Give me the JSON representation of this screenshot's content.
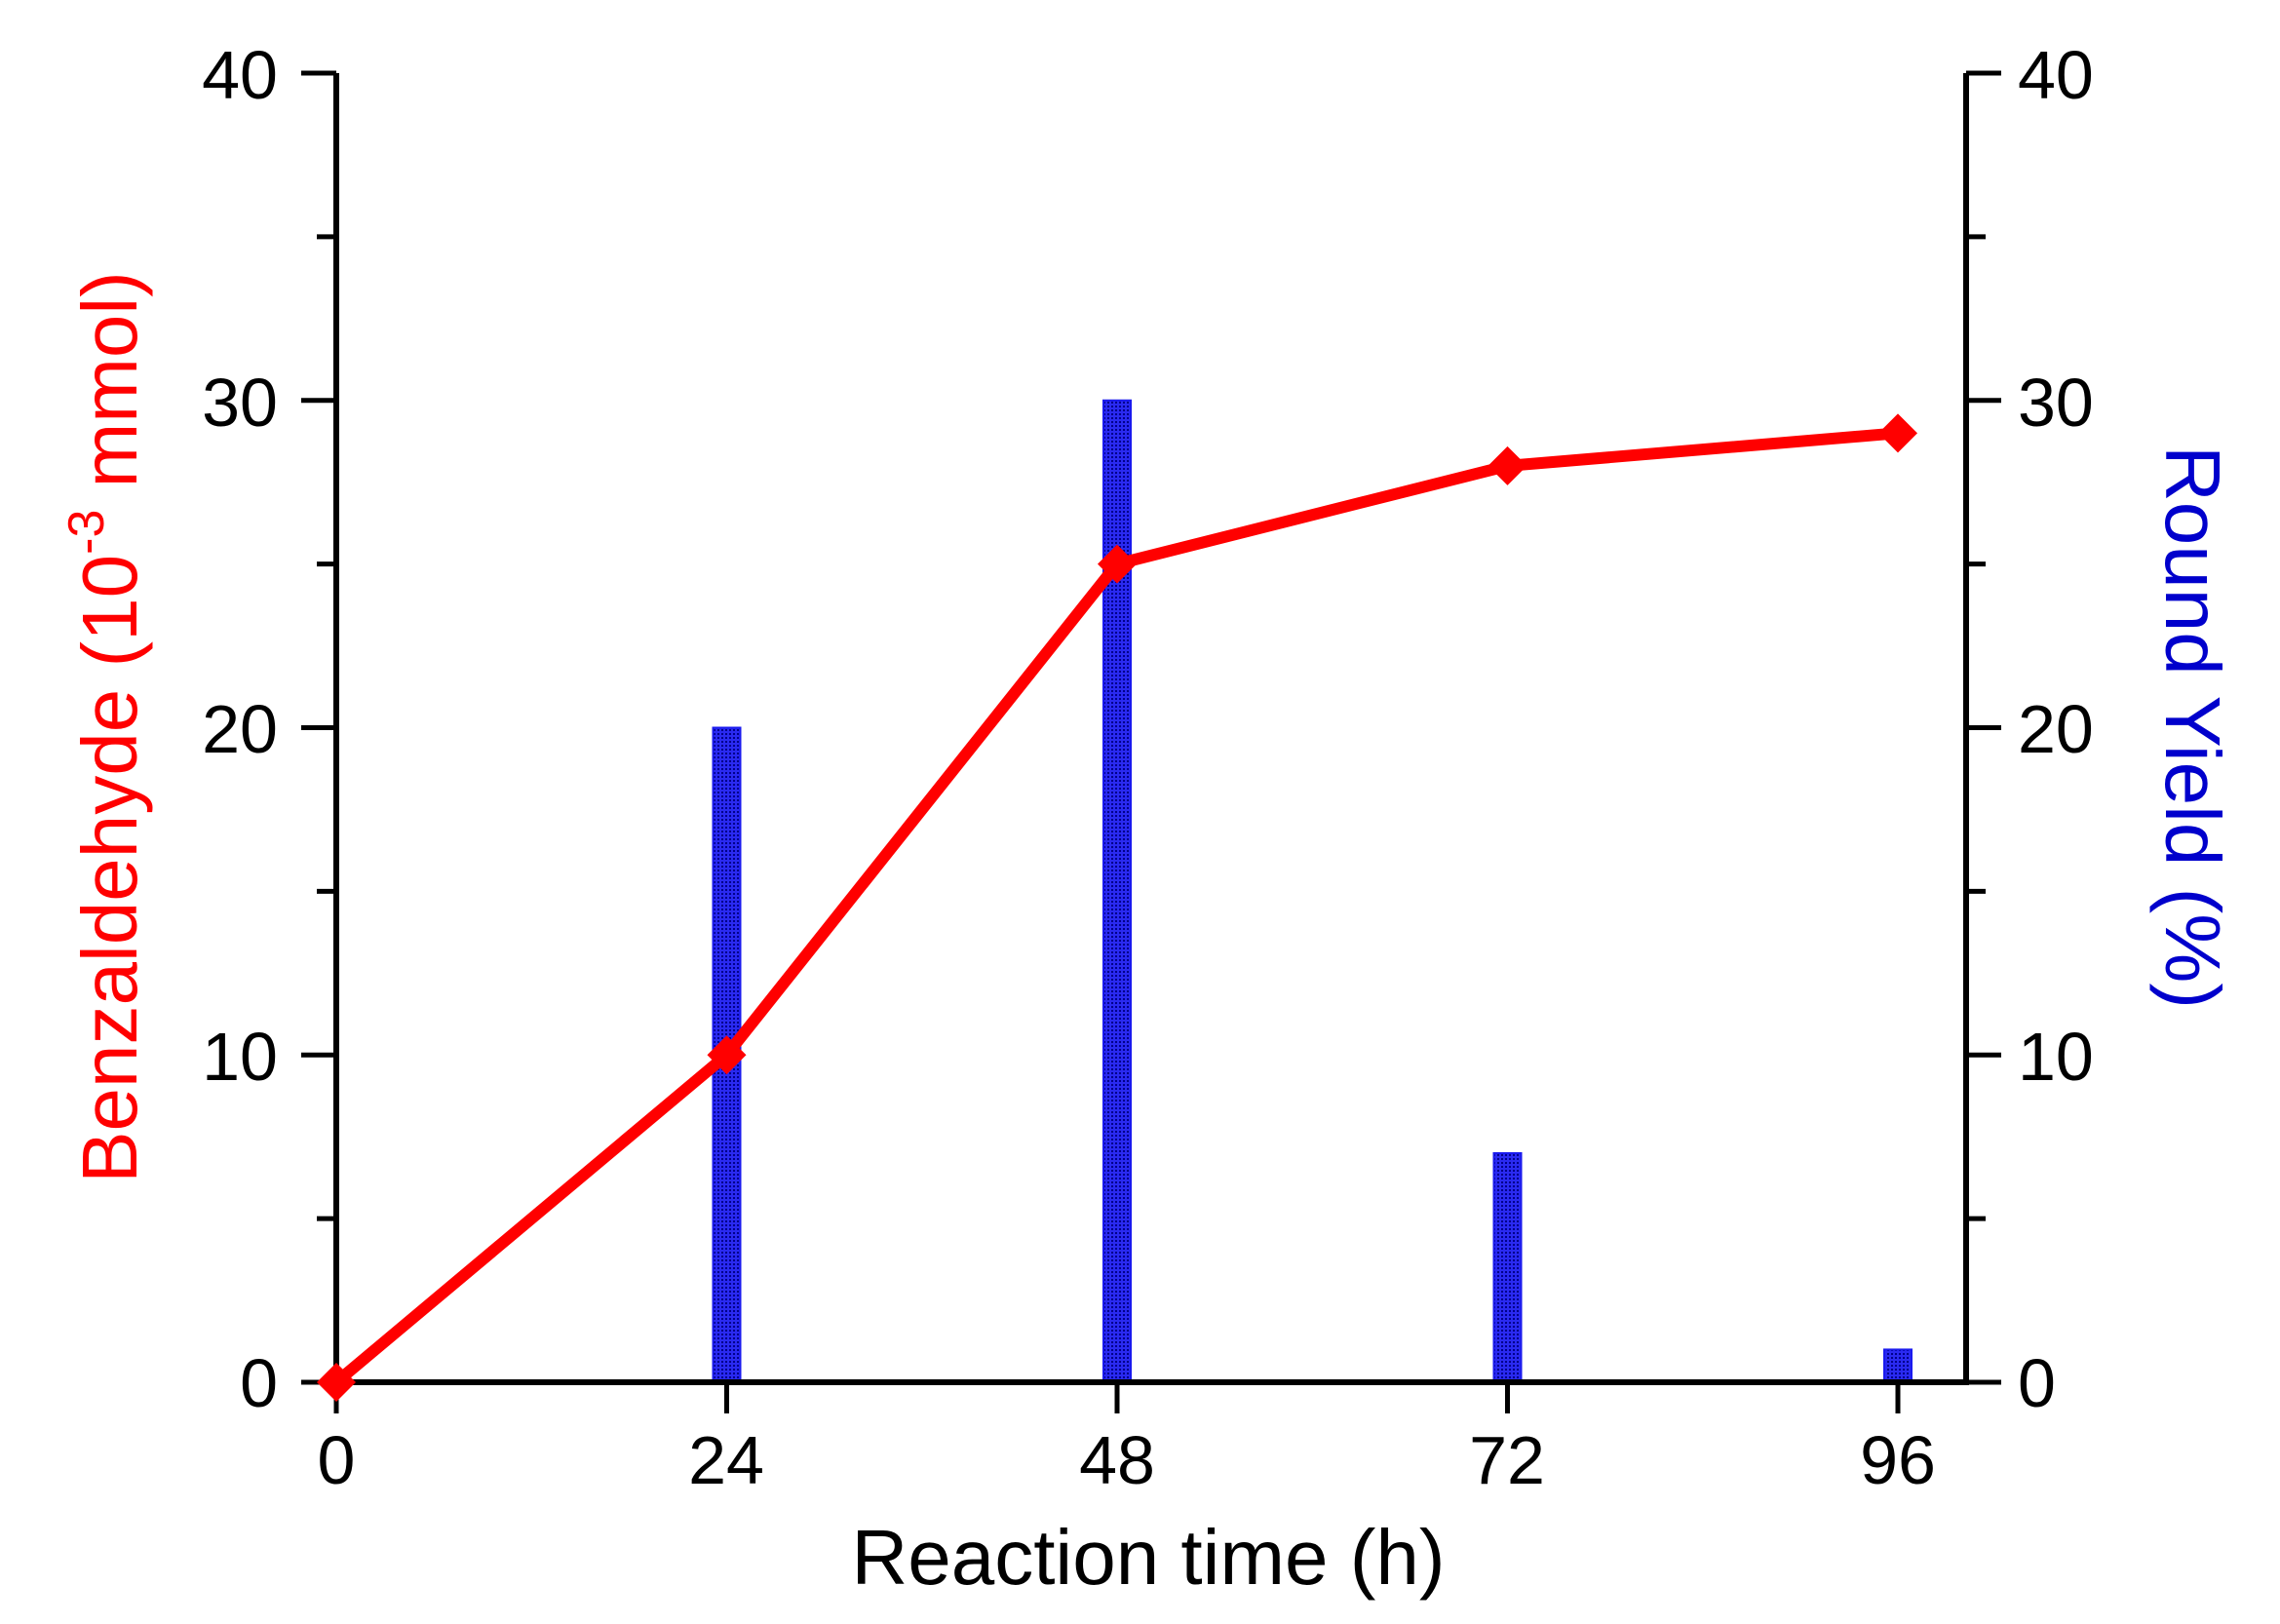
{
  "chart_data": {
    "type": "bar+line",
    "xlabel": "Reaction time (h)",
    "x_ticks": [
      "0",
      "24",
      "48",
      "72",
      "96"
    ],
    "x_range": [
      0,
      96
    ],
    "left_axis": {
      "label_main": "Benzaldehyde (10",
      "label_sup": "-3",
      "label_end": " mmol)",
      "color": "#ff0000",
      "range": [
        0,
        40
      ],
      "ticks": [
        "0",
        "10",
        "20",
        "30",
        "40"
      ]
    },
    "right_axis": {
      "label": "Round Yield (%)",
      "color": "#0000cc",
      "range": [
        0,
        40
      ],
      "ticks": [
        "0",
        "10",
        "20",
        "30",
        "40"
      ]
    },
    "series": [
      {
        "name": "Benzaldehyde",
        "kind": "line",
        "axis": "left",
        "color": "#ff0000",
        "marker": "diamond",
        "x": [
          0,
          24,
          48,
          72,
          96
        ],
        "values": [
          0,
          10,
          25,
          28,
          29
        ]
      },
      {
        "name": "Round Yield",
        "kind": "bar",
        "axis": "right",
        "color": "#1a1aee",
        "x": [
          24,
          48,
          72,
          96
        ],
        "values": [
          20,
          30,
          7,
          1
        ]
      }
    ]
  }
}
